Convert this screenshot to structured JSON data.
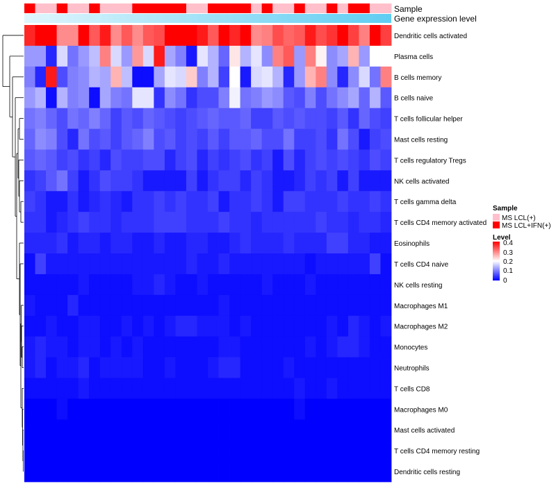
{
  "chart_data": {
    "type": "heatmap",
    "title": "",
    "xlabel": "",
    "ylabel": "",
    "annotation_tracks": [
      {
        "name": "Sample",
        "label": "Sample"
      },
      {
        "name": "Gene expression level",
        "label": "Gene expression level"
      }
    ],
    "sample_groups": [
      "MS LCL+IFN(+)",
      "MS LCL(+)",
      "MS LCL(+)",
      "MS LCL+IFN(+)",
      "MS LCL(+)",
      "MS LCL(+)",
      "MS LCL+IFN(+)",
      "MS LCL(+)",
      "MS LCL(+)",
      "MS LCL(+)",
      "MS LCL+IFN(+)",
      "MS LCL+IFN(+)",
      "MS LCL+IFN(+)",
      "MS LCL+IFN(+)",
      "MS LCL+IFN(+)",
      "MS LCL(+)",
      "MS LCL(+)",
      "MS LCL+IFN(+)",
      "MS LCL+IFN(+)",
      "MS LCL+IFN(+)",
      "MS LCL+IFN(+)",
      "MS LCL(+)",
      "MS LCL+IFN(+)",
      "MS LCL(+)",
      "MS LCL(+)",
      "MS LCL+IFN(+)",
      "MS LCL(+)",
      "MS LCL(+)",
      "MS LCL+IFN(+)",
      "MS LCL(+)",
      "MS LCL+IFN(+)",
      "MS LCL+IFN(+)",
      "MS LCL(+)",
      "MS LCL(+)"
    ],
    "rows": [
      "Dendritic cells activated",
      "Plasma cells",
      "B cells memory",
      "B cells naive",
      "T cells follicular helper",
      "Mast cells resting",
      "T cells regulatory  Tregs",
      "NK cells activated",
      "T cells gamma delta",
      "T cells CD4 memory activated",
      "Eosinophils",
      "T cells CD4 naive",
      "NK cells resting",
      "Macrophages M1",
      "Macrophages M2",
      "Monocytes",
      "Neutrophils",
      "T cells CD8",
      "Macrophages M0",
      "Mast cells activated",
      "T cells CD4 memory resting",
      "Dendritic cells resting"
    ],
    "values": [
      [
        0.37,
        0.4,
        0.4,
        0.29,
        0.29,
        0.4,
        0.33,
        0.38,
        0.29,
        0.33,
        0.29,
        0.33,
        0.34,
        0.4,
        0.4,
        0.4,
        0.38,
        0.33,
        0.4,
        0.37,
        0.4,
        0.29,
        0.3,
        0.34,
        0.32,
        0.33,
        0.38,
        0.34,
        0.36,
        0.4,
        0.35,
        0.3,
        0.4,
        0.35
      ],
      [
        0.12,
        0.12,
        0.03,
        0.17,
        0.09,
        0.12,
        0.15,
        0.3,
        0.17,
        0.12,
        0.28,
        0.17,
        0.38,
        0.13,
        0.1,
        0.02,
        0.18,
        0.14,
        0.08,
        0.22,
        0.14,
        0.18,
        0.11,
        0.3,
        0.33,
        0.12,
        0.3,
        0.21,
        0.11,
        0.13,
        0.26,
        0.12,
        0.2,
        0.2
      ],
      [
        0.1,
        0.03,
        0.38,
        0.06,
        0.1,
        0.11,
        0.14,
        0.13,
        0.26,
        0.15,
        0.01,
        0.01,
        0.13,
        0.18,
        0.17,
        0.24,
        0.1,
        0.14,
        0.05,
        0.2,
        0.02,
        0.17,
        0.18,
        0.14,
        0.03,
        0.12,
        0.26,
        0.3,
        0.11,
        0.03,
        0.11,
        0.17,
        0.09,
        0.3
      ],
      [
        0.12,
        0.14,
        0.01,
        0.14,
        0.1,
        0.11,
        0.01,
        0.13,
        0.1,
        0.09,
        0.18,
        0.18,
        0.04,
        0.11,
        0.09,
        0.04,
        0.06,
        0.06,
        0.1,
        0.19,
        0.09,
        0.1,
        0.12,
        0.11,
        0.07,
        0.06,
        0.1,
        0.06,
        0.09,
        0.11,
        0.13,
        0.08,
        0.14,
        0.07
      ],
      [
        0.09,
        0.1,
        0.08,
        0.06,
        0.09,
        0.08,
        0.1,
        0.08,
        0.05,
        0.07,
        0.06,
        0.08,
        0.07,
        0.06,
        0.05,
        0.06,
        0.07,
        0.08,
        0.07,
        0.07,
        0.08,
        0.05,
        0.05,
        0.07,
        0.06,
        0.07,
        0.06,
        0.06,
        0.05,
        0.07,
        0.04,
        0.08,
        0.06,
        0.05
      ],
      [
        0.08,
        0.11,
        0.1,
        0.06,
        0.03,
        0.09,
        0.06,
        0.07,
        0.05,
        0.07,
        0.08,
        0.1,
        0.06,
        0.07,
        0.05,
        0.06,
        0.05,
        0.07,
        0.05,
        0.07,
        0.07,
        0.08,
        0.06,
        0.06,
        0.09,
        0.05,
        0.05,
        0.06,
        0.04,
        0.09,
        0.06,
        0.02,
        0.05,
        0.06
      ],
      [
        0.07,
        0.08,
        0.07,
        0.05,
        0.06,
        0.04,
        0.05,
        0.03,
        0.06,
        0.05,
        0.05,
        0.06,
        0.06,
        0.03,
        0.05,
        0.06,
        0.03,
        0.05,
        0.04,
        0.05,
        0.06,
        0.04,
        0.05,
        0.02,
        0.06,
        0.03,
        0.05,
        0.06,
        0.05,
        0.06,
        0.05,
        0.04,
        0.06,
        0.05
      ],
      [
        0.04,
        0.05,
        0.07,
        0.09,
        0.05,
        0.02,
        0.04,
        0.06,
        0.05,
        0.05,
        0.04,
        0.02,
        0.02,
        0.02,
        0.02,
        0.05,
        0.02,
        0.04,
        0.05,
        0.05,
        0.03,
        0.05,
        0.04,
        0.02,
        0.02,
        0.03,
        0.05,
        0.04,
        0.05,
        0.02,
        0.05,
        0.02,
        0.02,
        0.02
      ],
      [
        0.05,
        0.04,
        0.02,
        0.02,
        0.04,
        0.02,
        0.03,
        0.04,
        0.03,
        0.02,
        0.04,
        0.04,
        0.05,
        0.04,
        0.05,
        0.04,
        0.04,
        0.05,
        0.02,
        0.04,
        0.04,
        0.05,
        0.04,
        0.02,
        0.05,
        0.05,
        0.04,
        0.04,
        0.04,
        0.05,
        0.04,
        0.04,
        0.05,
        0.04
      ],
      [
        0.04,
        0.04,
        0.02,
        0.03,
        0.04,
        0.05,
        0.04,
        0.04,
        0.03,
        0.04,
        0.04,
        0.04,
        0.05,
        0.05,
        0.05,
        0.04,
        0.04,
        0.04,
        0.05,
        0.04,
        0.04,
        0.03,
        0.04,
        0.04,
        0.04,
        0.04,
        0.04,
        0.05,
        0.04,
        0.04,
        0.03,
        0.04,
        0.04,
        0.03
      ],
      [
        0.03,
        0.03,
        0.03,
        0.04,
        0.02,
        0.03,
        0.03,
        0.02,
        0.03,
        0.03,
        0.02,
        0.02,
        0.03,
        0.02,
        0.02,
        0.03,
        0.03,
        0.02,
        0.02,
        0.03,
        0.04,
        0.03,
        0.03,
        0.03,
        0.04,
        0.03,
        0.03,
        0.03,
        0.05,
        0.05,
        0.03,
        0.03,
        0.02,
        0.02
      ],
      [
        0.01,
        0.05,
        0.02,
        0.02,
        0.02,
        0.02,
        0.02,
        0.02,
        0.02,
        0.02,
        0.02,
        0.02,
        0.02,
        0.02,
        0.02,
        0.03,
        0.02,
        0.02,
        0.03,
        0.02,
        0.02,
        0.02,
        0.02,
        0.02,
        0.02,
        0.02,
        0.01,
        0.02,
        0.02,
        0.02,
        0.02,
        0.02,
        0.05,
        0.01
      ],
      [
        0.01,
        0.01,
        0.01,
        0.01,
        0.01,
        0.02,
        0.01,
        0.01,
        0.01,
        0.01,
        0.02,
        0.02,
        0.03,
        0.02,
        0.01,
        0.01,
        0.02,
        0.01,
        0.01,
        0.01,
        0.01,
        0.01,
        0.02,
        0.01,
        0.01,
        0.01,
        0.02,
        0.01,
        0.01,
        0.01,
        0.01,
        0.01,
        0.01,
        0.01
      ],
      [
        0.02,
        0.01,
        0.01,
        0.01,
        0.03,
        0.01,
        0.01,
        0.01,
        0.01,
        0.01,
        0.01,
        0.01,
        0.01,
        0.01,
        0.01,
        0.01,
        0.01,
        0.01,
        0.02,
        0.01,
        0.01,
        0.01,
        0.01,
        0.01,
        0.01,
        0.01,
        0.01,
        0.01,
        0.01,
        0.01,
        0.01,
        0.01,
        0.01,
        0.01
      ],
      [
        0.01,
        0.01,
        0.02,
        0.01,
        0.01,
        0.02,
        0.02,
        0.01,
        0.01,
        0.02,
        0.01,
        0.02,
        0.01,
        0.02,
        0.03,
        0.03,
        0.02,
        0.02,
        0.02,
        0.01,
        0.02,
        0.01,
        0.01,
        0.01,
        0.01,
        0.01,
        0.01,
        0.01,
        0.02,
        0.01,
        0.03,
        0.02,
        0.01,
        0.02
      ],
      [
        0.02,
        0.03,
        0.02,
        0.02,
        0.01,
        0.02,
        0.02,
        0.01,
        0.02,
        0.01,
        0.02,
        0.01,
        0.01,
        0.01,
        0.01,
        0.01,
        0.01,
        0.01,
        0.02,
        0.02,
        0.01,
        0.01,
        0.01,
        0.01,
        0.01,
        0.01,
        0.02,
        0.01,
        0.02,
        0.03,
        0.03,
        0.02,
        0.01,
        0.01
      ],
      [
        0.02,
        0.03,
        0.01,
        0.02,
        0.02,
        0.03,
        0.01,
        0.02,
        0.02,
        0.02,
        0.02,
        0.01,
        0.01,
        0.02,
        0.01,
        0.01,
        0.01,
        0.02,
        0.03,
        0.03,
        0.01,
        0.01,
        0.01,
        0.01,
        0.02,
        0.01,
        0.01,
        0.01,
        0.01,
        0.01,
        0.01,
        0.01,
        0.01,
        0.01
      ],
      [
        0.01,
        0.01,
        0.01,
        0.01,
        0.01,
        0.02,
        0.01,
        0.01,
        0.01,
        0.01,
        0.01,
        0.01,
        0.01,
        0.01,
        0.01,
        0.01,
        0.01,
        0.01,
        0.01,
        0.01,
        0.01,
        0.01,
        0.01,
        0.01,
        0.01,
        0.02,
        0.01,
        0.01,
        0.02,
        0.01,
        0.01,
        0.01,
        0.01,
        0.01
      ],
      [
        0.0,
        0.0,
        0.0,
        0.01,
        0.0,
        0.0,
        0.0,
        0.0,
        0.0,
        0.0,
        0.0,
        0.0,
        0.0,
        0.0,
        0.0,
        0.0,
        0.0,
        0.0,
        0.0,
        0.0,
        0.0,
        0.0,
        0.0,
        0.0,
        0.0,
        0.01,
        0.0,
        0.0,
        0.0,
        0.0,
        0.0,
        0.0,
        0.0,
        0.0
      ],
      [
        0.0,
        0.0,
        0.0,
        0.0,
        0.0,
        0.0,
        0.0,
        0.0,
        0.0,
        0.0,
        0.0,
        0.0,
        0.0,
        0.0,
        0.0,
        0.0,
        0.0,
        0.0,
        0.0,
        0.0,
        0.0,
        0.0,
        0.0,
        0.0,
        0.0,
        0.0,
        0.0,
        0.0,
        0.0,
        0.0,
        0.0,
        0.0,
        0.0,
        0.0
      ],
      [
        0.0,
        0.0,
        0.0,
        0.0,
        0.0,
        0.0,
        0.0,
        0.0,
        0.0,
        0.0,
        0.0,
        0.0,
        0.0,
        0.0,
        0.0,
        0.0,
        0.0,
        0.0,
        0.0,
        0.0,
        0.0,
        0.0,
        0.0,
        0.0,
        0.0,
        0.0,
        0.0,
        0.0,
        0.0,
        0.0,
        0.0,
        0.0,
        0.0,
        0.0
      ],
      [
        0.0,
        0.0,
        0.0,
        0.0,
        0.0,
        0.0,
        0.0,
        0.0,
        0.0,
        0.0,
        0.0,
        0.0,
        0.0,
        0.0,
        0.0,
        0.0,
        0.0,
        0.0,
        0.0,
        0.0,
        0.0,
        0.0,
        0.0,
        0.0,
        0.0,
        0.0,
        0.0,
        0.0,
        0.0,
        0.0,
        0.0,
        0.0,
        0.0,
        0.0
      ]
    ],
    "color_range": [
      0,
      0.4
    ],
    "color_scale": {
      "low": "#0000ff",
      "mid": "#ffffff",
      "high": "#ff0000",
      "mid_value": 0.2
    },
    "legend": {
      "position": "right",
      "sample": {
        "title": "Sample",
        "entries": [
          {
            "label": "MS LCL(+)",
            "color": "#ffc0cb"
          },
          {
            "label": "MS LCL+IFN(+)",
            "color": "#ff0000"
          }
        ]
      },
      "level": {
        "title": "Level",
        "ticks": [
          "0.4",
          "0.3",
          "0.2",
          "0.1",
          "0"
        ]
      }
    },
    "expression_track_colors": [
      "#e0f6fd",
      "#5fcdf2"
    ],
    "dendrogram": "rows"
  }
}
